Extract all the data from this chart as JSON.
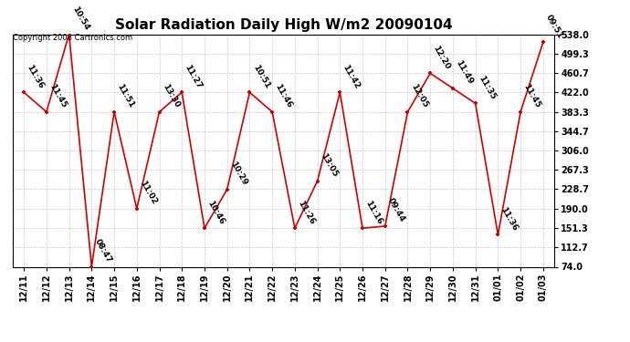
{
  "title": "Solar Radiation Daily High W/m2 20090104",
  "copyright": "Copyright 2008 Cartronics.com",
  "x_labels": [
    "12/11",
    "12/12",
    "12/13",
    "12/14",
    "12/15",
    "12/16",
    "12/17",
    "12/18",
    "12/19",
    "12/20",
    "12/21",
    "12/22",
    "12/23",
    "12/24",
    "12/25",
    "12/26",
    "12/27",
    "12/28",
    "12/29",
    "12/30",
    "12/31",
    "01/01",
    "01/02",
    "01/03"
  ],
  "y_values": [
    422,
    383,
    538,
    74,
    383,
    190,
    383,
    422,
    151,
    228,
    422,
    383,
    151,
    245,
    422,
    151,
    155,
    383,
    460,
    430,
    400,
    138,
    383,
    522
  ],
  "time_labels": [
    "11:36",
    "11:45",
    "10:54",
    "08:47",
    "11:51",
    "11:02",
    "13:30",
    "11:27",
    "10:46",
    "10:29",
    "10:51",
    "11:46",
    "11:26",
    "13:05",
    "11:42",
    "11:16",
    "09:44",
    "12:05",
    "12:20",
    "11:49",
    "11:35",
    "11:36",
    "11:45",
    "09:51"
  ],
  "ylim": [
    74.0,
    538.0
  ],
  "yticks": [
    74.0,
    112.7,
    151.3,
    190.0,
    228.7,
    267.3,
    306.0,
    344.7,
    383.3,
    422.0,
    460.7,
    499.3,
    538.0
  ],
  "line_color": "#cc0000",
  "marker_color": "#cc0000",
  "background_color": "#ffffff",
  "grid_color": "#c8c8c8",
  "title_fontsize": 11,
  "annotation_fontsize": 6.5,
  "tick_fontsize": 7,
  "copyright_fontsize": 6
}
